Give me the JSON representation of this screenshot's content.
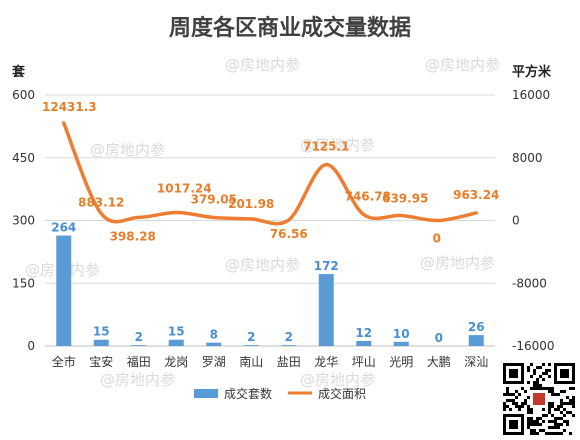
{
  "title": "周度各区商业成交量数据",
  "watermark": "@房地内参",
  "chart_data": {
    "type": "bar",
    "title": "周度各区商业成交量数据",
    "categories": [
      "全市",
      "宝安",
      "福田",
      "龙岗",
      "罗湖",
      "南山",
      "盐田",
      "龙华",
      "坪山",
      "光明",
      "大鹏",
      "深汕"
    ],
    "y_left": {
      "label": "套",
      "min": 0,
      "max": 600,
      "ticks": [
        0,
        150,
        300,
        450,
        600
      ]
    },
    "y_right": {
      "label": "平方米",
      "min": -16000,
      "max": 16000,
      "ticks": [
        -16000,
        -8000,
        0,
        8000,
        16000
      ]
    },
    "grid": true,
    "legend_position": "bottom",
    "series": [
      {
        "name": "成交套数",
        "type": "bar",
        "axis": "left",
        "color": "#5b9bd5",
        "values": [
          264,
          15,
          2,
          15,
          8,
          2,
          2,
          172,
          12,
          10,
          0,
          26
        ],
        "labels": [
          "264",
          "15",
          "2",
          "15",
          "8",
          "2",
          "2",
          "172",
          "12",
          "10",
          "0",
          "26"
        ]
      },
      {
        "name": "成交面积",
        "type": "line",
        "axis": "right",
        "color": "#ed7d31",
        "values": [
          12431.3,
          883.12,
          398.28,
          1017.24,
          379.05,
          201.98,
          76.56,
          7125.1,
          746.78,
          639.95,
          0,
          963.24
        ],
        "labels": [
          "12431.3",
          "883.12",
          "398.28",
          "1017.24",
          "379.05",
          "201.98",
          "76.56",
          "7125.1",
          "746.78",
          "639.95",
          "0",
          "963.24"
        ]
      }
    ]
  }
}
